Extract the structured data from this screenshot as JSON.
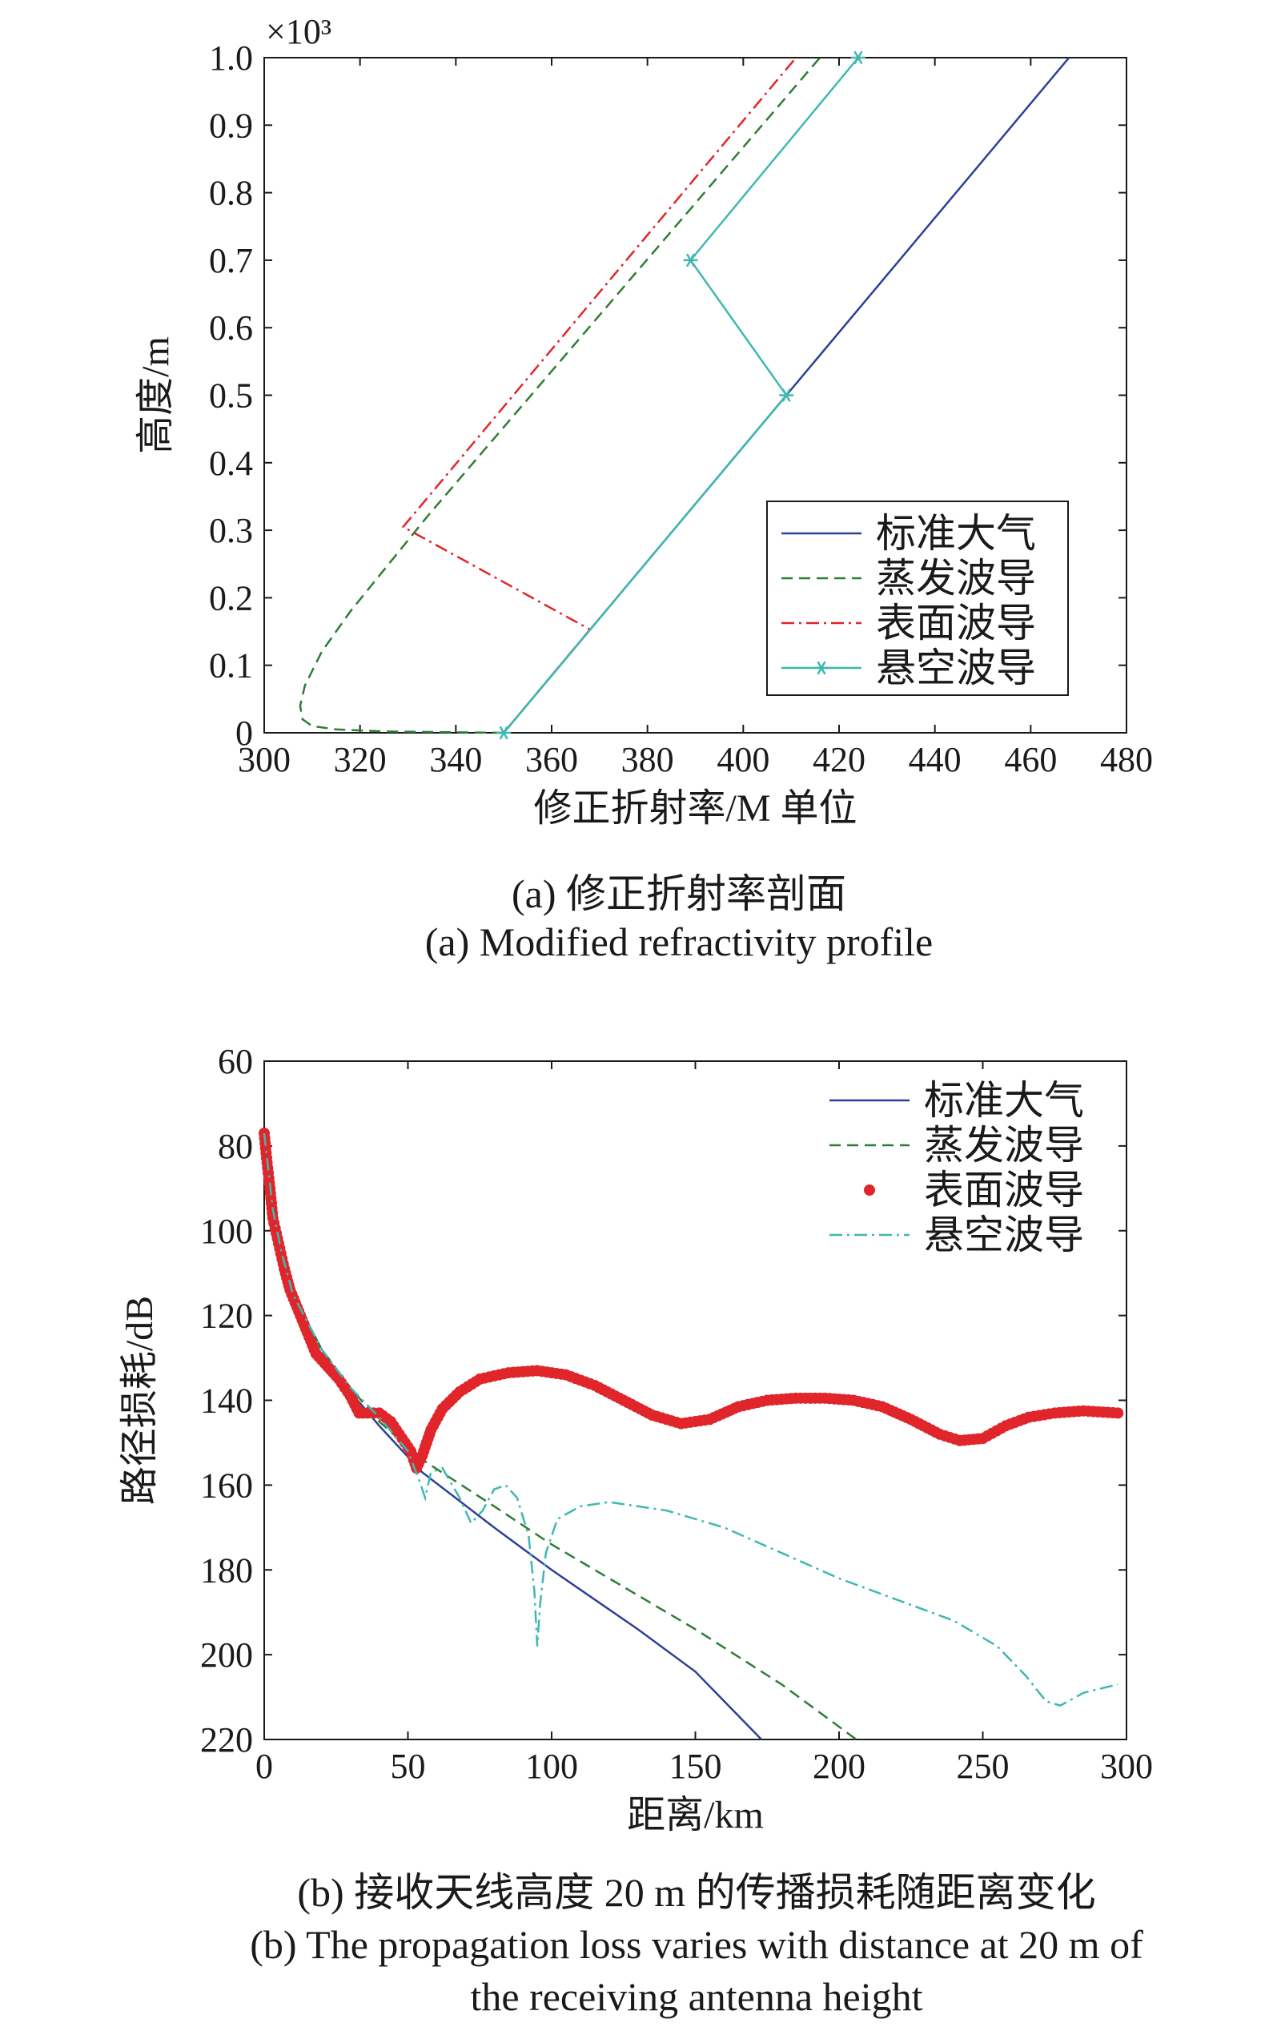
{
  "captions": {
    "a_cn": "(a) 修正折射率剖面",
    "a_en": "(a) Modified refractivity profile",
    "b_cn": "(b) 接收天线高度 20 m 的传播损耗随距离变化",
    "b_en_line1": "(b) The propagation loss varies with distance at 20 m of",
    "b_en_line2": "the receiving antenna height"
  },
  "colors": {
    "standard": "#2e3f95",
    "evaporation": "#2e7d32",
    "surface": "#e0252b",
    "elevated": "#3fb8b0"
  },
  "chart_data": [
    {
      "type": "line",
      "xlabel": "修正折射率/M 单位",
      "ylabel": "高度/m",
      "y_multiplier_label": "×10³",
      "xlim": [
        300,
        480
      ],
      "ylim": [
        0,
        1.0
      ],
      "xticks": [
        "300",
        "320",
        "340",
        "360",
        "380",
        "400",
        "420",
        "440",
        "460",
        "480"
      ],
      "yticks": [
        "0",
        "0.1",
        "0.2",
        "0.3",
        "0.4",
        "0.5",
        "0.6",
        "0.7",
        "0.8",
        "0.9",
        "1.0"
      ],
      "legend_position": "bottom-right",
      "series": [
        {
          "name": "标准大气",
          "style": "solid",
          "color_key": "standard",
          "points": [
            [
              350,
              0
            ],
            [
              468,
              1.0
            ]
          ]
        },
        {
          "name": "蒸发波导",
          "style": "dashed",
          "color_key": "evaporation",
          "points": [
            [
              350,
              0
            ],
            [
              325,
              0.002
            ],
            [
              315,
              0.005
            ],
            [
              310,
              0.01
            ],
            [
              308,
              0.02
            ],
            [
              307.5,
              0.04
            ],
            [
              308.5,
              0.07
            ],
            [
              312,
              0.12
            ],
            [
              318,
              0.18
            ],
            [
              326,
              0.25
            ],
            [
              334,
              0.32
            ],
            [
              416,
              1.0
            ]
          ]
        },
        {
          "name": "表面波导",
          "style": "dashdot",
          "color_key": "surface",
          "points": [
            [
              350,
              0
            ],
            [
              368,
              0.153
            ],
            [
              329,
              0.305
            ],
            [
              411,
              1.0
            ]
          ]
        },
        {
          "name": "悬空波导",
          "style": "solid-star",
          "color_key": "elevated",
          "points": [
            [
              350,
              0
            ],
            [
              409,
              0.5
            ],
            [
              389,
              0.7
            ],
            [
              424,
              1.0
            ]
          ]
        }
      ]
    },
    {
      "type": "line",
      "xlabel": "距离/km",
      "ylabel": "路径损耗/dB",
      "xlim": [
        0,
        300
      ],
      "ylim": [
        60,
        220
      ],
      "y_inverted": true,
      "xticks": [
        "0",
        "50",
        "100",
        "150",
        "200",
        "250",
        "300"
      ],
      "yticks": [
        "60",
        "80",
        "100",
        "120",
        "140",
        "160",
        "180",
        "200",
        "220"
      ],
      "legend_position": "top-right",
      "series": [
        {
          "name": "标准大气",
          "style": "solid",
          "color_key": "standard",
          "points": [
            [
              0,
              77
            ],
            [
              3,
              95
            ],
            [
              6,
              105
            ],
            [
              10,
              115
            ],
            [
              20,
              128
            ],
            [
              30,
              138
            ],
            [
              40,
              146
            ],
            [
              55,
              157
            ],
            [
              80,
              170
            ],
            [
              100,
              180
            ],
            [
              130,
              194
            ],
            [
              150,
              204
            ],
            [
              173,
              220
            ]
          ]
        },
        {
          "name": "蒸发波导",
          "style": "dashed",
          "color_key": "evaporation",
          "points": [
            [
              0,
              77
            ],
            [
              3,
              95
            ],
            [
              6,
              105
            ],
            [
              10,
              115
            ],
            [
              20,
              128
            ],
            [
              30,
              137
            ],
            [
              40,
              145
            ],
            [
              55,
              154
            ],
            [
              80,
              165
            ],
            [
              100,
              174
            ],
            [
              130,
              186
            ],
            [
              150,
              194
            ],
            [
              180,
              207
            ],
            [
              206,
              220
            ]
          ]
        },
        {
          "name": "表面波导",
          "style": "dots",
          "color_key": "surface",
          "points": [
            [
              0,
              77
            ],
            [
              1,
              84
            ],
            [
              2,
              90
            ],
            [
              3,
              97
            ],
            [
              5,
              103
            ],
            [
              7,
              109
            ],
            [
              9,
              114
            ],
            [
              12,
              119
            ],
            [
              15,
              124
            ],
            [
              18,
              129
            ],
            [
              22,
              132
            ],
            [
              26,
              135
            ],
            [
              30,
              139
            ],
            [
              33,
              143
            ],
            [
              36,
              143
            ],
            [
              40,
              143
            ],
            [
              44,
              145
            ],
            [
              48,
              149
            ],
            [
              51,
              152
            ],
            [
              53,
              156
            ],
            [
              55,
              153
            ],
            [
              58,
              147
            ],
            [
              62,
              142
            ],
            [
              68,
              138
            ],
            [
              75,
              135
            ],
            [
              85,
              133.5
            ],
            [
              95,
              133
            ],
            [
              105,
              134
            ],
            [
              115,
              136.5
            ],
            [
              125,
              140
            ],
            [
              135,
              143.5
            ],
            [
              145,
              145.5
            ],
            [
              155,
              144.5
            ],
            [
              165,
              141.5
            ],
            [
              175,
              140
            ],
            [
              185,
              139.5
            ],
            [
              195,
              139.5
            ],
            [
              205,
              140
            ],
            [
              215,
              141.5
            ],
            [
              225,
              144.5
            ],
            [
              235,
              148
            ],
            [
              242,
              149.5
            ],
            [
              250,
              149
            ],
            [
              258,
              146
            ],
            [
              266,
              144
            ],
            [
              275,
              143
            ],
            [
              285,
              142.5
            ],
            [
              297,
              143
            ]
          ]
        },
        {
          "name": "悬空波导",
          "style": "dashdot",
          "color_key": "elevated",
          "points": [
            [
              0,
              77
            ],
            [
              3,
              95
            ],
            [
              6,
              105
            ],
            [
              10,
              115
            ],
            [
              20,
              128
            ],
            [
              30,
              137
            ],
            [
              40,
              144
            ],
            [
              50,
              152
            ],
            [
              54,
              159
            ],
            [
              56,
              163
            ],
            [
              58,
              157
            ],
            [
              62,
              156
            ],
            [
              68,
              163
            ],
            [
              72,
              169
            ],
            [
              76,
              166
            ],
            [
              80,
              161
            ],
            [
              84,
              160
            ],
            [
              88,
              163
            ],
            [
              92,
              172
            ],
            [
              94,
              185
            ],
            [
              95,
              198
            ],
            [
              96,
              188
            ],
            [
              98,
              176
            ],
            [
              102,
              168
            ],
            [
              110,
              165
            ],
            [
              120,
              164
            ],
            [
              140,
              166
            ],
            [
              160,
              170
            ],
            [
              180,
              176
            ],
            [
              200,
              182
            ],
            [
              220,
              187
            ],
            [
              240,
              192
            ],
            [
              255,
              198
            ],
            [
              265,
              205
            ],
            [
              272,
              211
            ],
            [
              277,
              212
            ],
            [
              285,
              209
            ],
            [
              297,
              207
            ]
          ]
        }
      ]
    }
  ]
}
